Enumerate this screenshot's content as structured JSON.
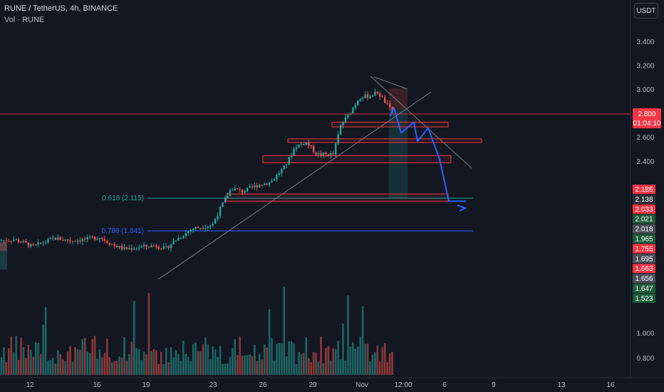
{
  "header": {
    "title": "RUNE / TetherUS, 4h, BINANCE",
    "volume_label": "Vol · RUNE",
    "currency_button": "USDT"
  },
  "chart_data": {
    "type": "candlestick",
    "symbol": "RUNE / TetherUS",
    "timeframe": "4h",
    "exchange": "BINANCE",
    "y_axis": {
      "ticks": [
        3.4,
        3.2,
        3.0,
        2.6,
        2.4,
        1.0,
        0.8
      ],
      "tick_labels": [
        "3.400",
        "3.200",
        "3.000",
        "2.600",
        "2.400",
        "1.000",
        "0.800"
      ],
      "range_price": [
        1.5,
        3.5
      ]
    },
    "x_axis": {
      "ticks": [
        "12",
        "16",
        "19",
        "23",
        "26",
        "29",
        "Nov",
        "12:00",
        "6",
        "9",
        "13",
        "16"
      ]
    },
    "current_price": {
      "value": "2.800",
      "countdown": "01:04:10",
      "color": "#f23645"
    },
    "price_tags": [
      {
        "value": "2.185",
        "color": "#f23645"
      },
      {
        "value": "2.138",
        "color": "#2a2e39"
      },
      {
        "value": "2.033",
        "color": "#f23645"
      },
      {
        "value": "2.021",
        "color": "#1e5c3a"
      },
      {
        "value": "2.018",
        "color": "#4a4e59"
      },
      {
        "value": "1.965",
        "color": "#1e5c3a"
      },
      {
        "value": "1.755",
        "color": "#f23645"
      },
      {
        "value": "1.695",
        "color": "#4a4e59"
      },
      {
        "value": "1.663",
        "color": "#f23645"
      },
      {
        "value": "1.656",
        "color": "#4a4e59"
      },
      {
        "value": "1.647",
        "color": "#1e5c3a"
      },
      {
        "value": "1.523",
        "color": "#1e5c3a"
      }
    ],
    "fib_levels": [
      {
        "label": "0.618 (2.115)",
        "price": 2.115,
        "color": "#26a69a"
      },
      {
        "label": "0.786 (1.841)",
        "price": 1.841,
        "color": "#2962ff"
      }
    ],
    "zones": [
      {
        "from": 2.69,
        "to": 2.73
      },
      {
        "from": 2.56,
        "to": 2.59
      },
      {
        "from": 2.39,
        "to": 2.45
      },
      {
        "from": 2.07,
        "to": 2.13
      }
    ],
    "projection_path_prices": [
      2.78,
      2.85,
      2.64,
      2.73,
      2.57,
      2.68,
      2.42,
      2.07
    ],
    "volume_series_color_up": "#26a69a",
    "volume_series_color_down": "#ef5350",
    "colors": {
      "up": "#26a69a",
      "down": "#ef5350",
      "background": "#131722",
      "projection": "#2962ff"
    }
  }
}
